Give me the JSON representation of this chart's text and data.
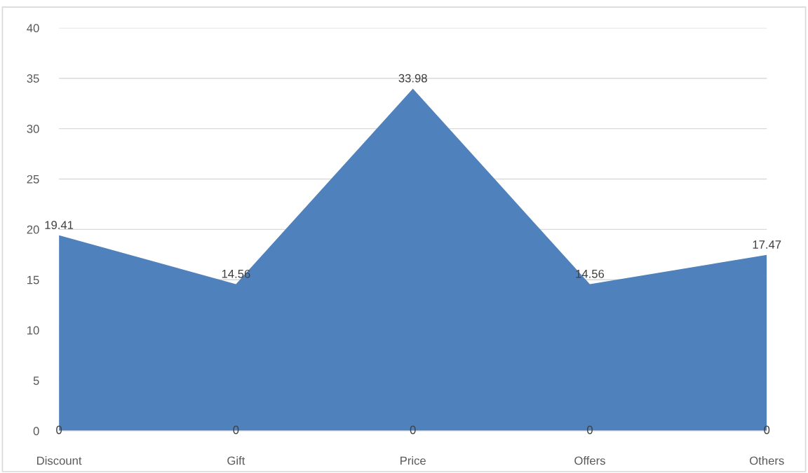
{
  "chart_data": {
    "type": "area",
    "categories": [
      "Discount",
      "Gift",
      "Price",
      "Offers",
      "Others"
    ],
    "series": [
      {
        "color": "#4f81bd",
        "values": [
          19.41,
          14.56,
          33.98,
          14.56,
          17.47
        ],
        "value_labels": [
          "19.41",
          "14.56",
          "33.98",
          "14.56",
          "17.47"
        ]
      }
    ],
    "annotations": [
      {
        "text": "0",
        "x": "Discount",
        "y": 0
      },
      {
        "text": "0",
        "x": "Gift",
        "y": 0
      },
      {
        "text": "0",
        "x": "Price",
        "y": 0
      },
      {
        "text": "0",
        "x": "Offers",
        "y": 0
      },
      {
        "text": "0",
        "x": "Others",
        "y": 0
      }
    ],
    "ylim": [
      0,
      40
    ],
    "yticks": [
      0,
      5,
      10,
      15,
      20,
      25,
      30,
      35,
      40
    ],
    "grid": "y"
  }
}
